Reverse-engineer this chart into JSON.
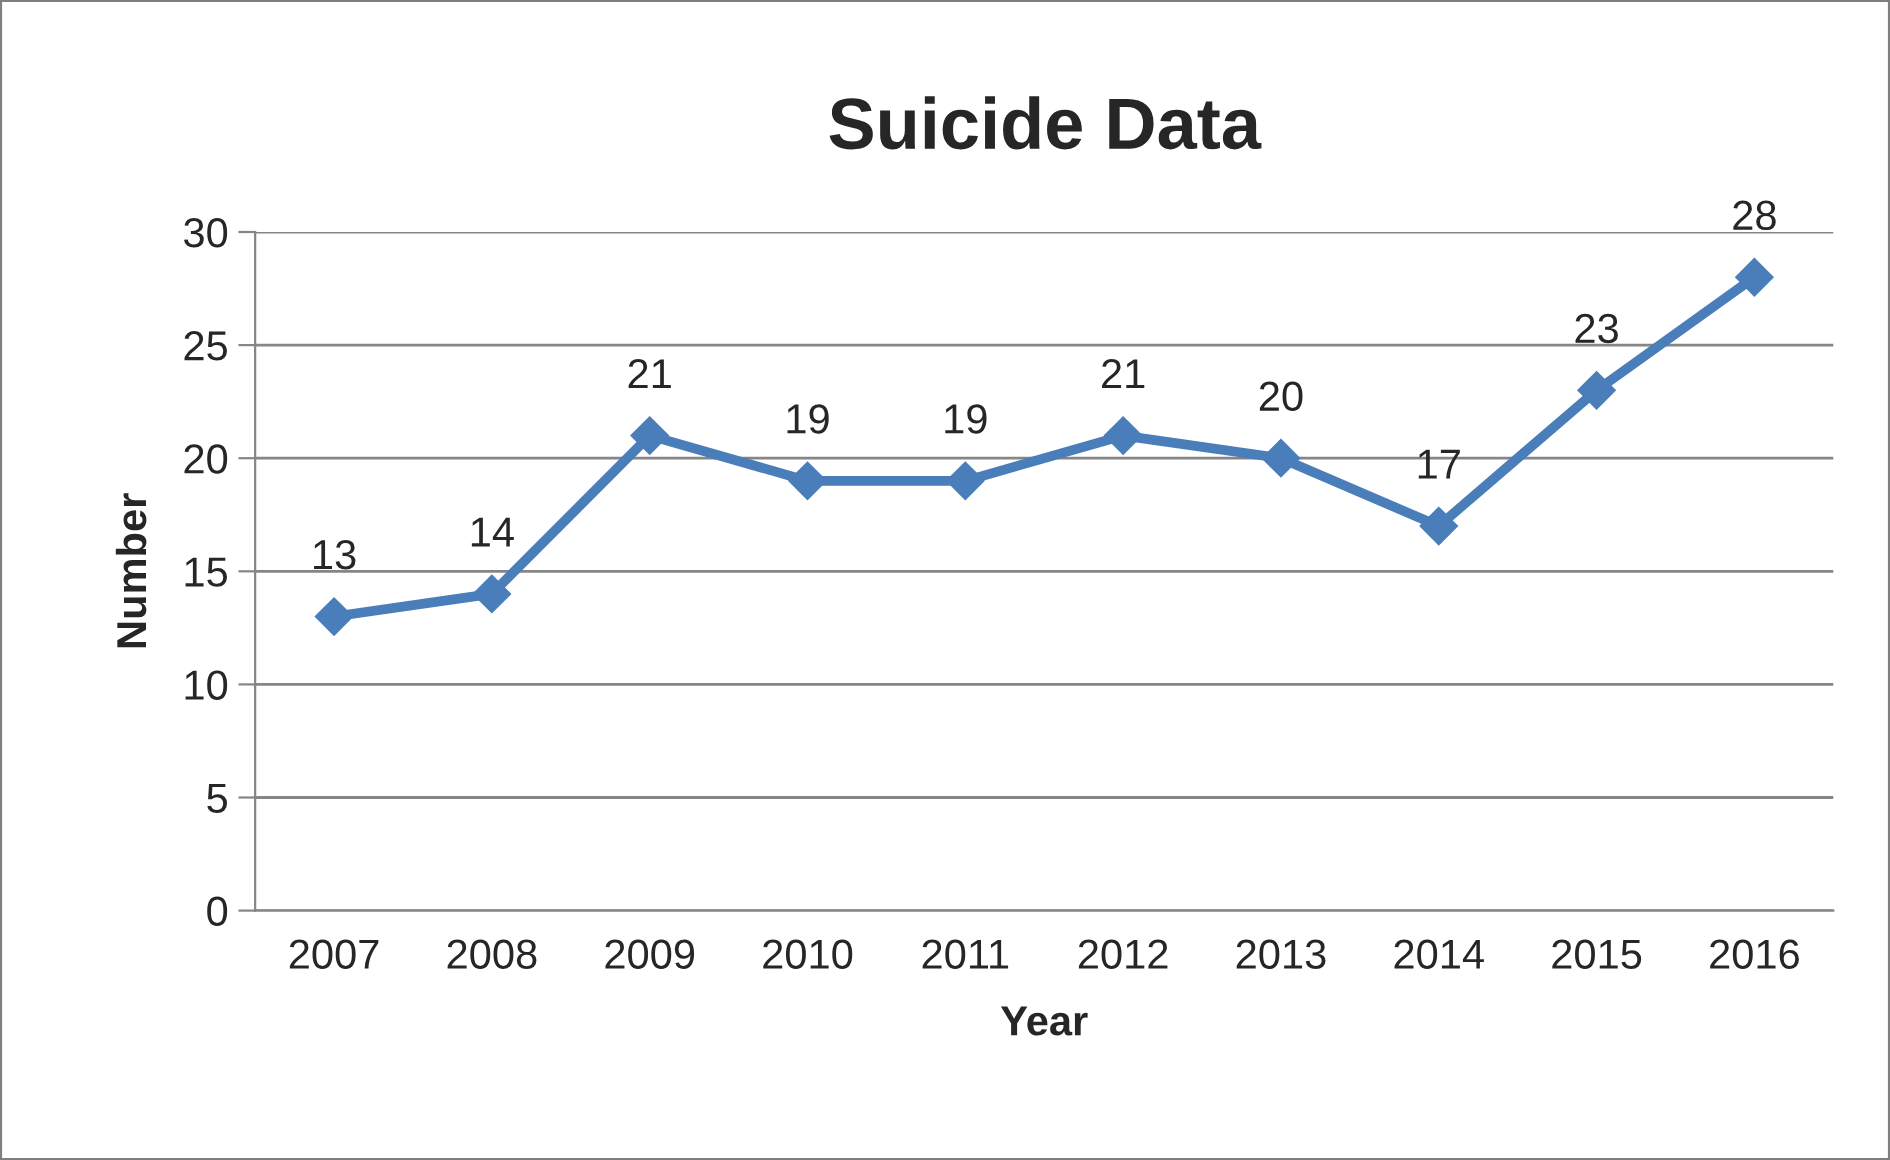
{
  "chart_data": {
    "type": "line",
    "title": "Suicide Data",
    "xlabel": "Year",
    "ylabel": "Number",
    "categories": [
      "2007",
      "2008",
      "2009",
      "2010",
      "2011",
      "2012",
      "2013",
      "2014",
      "2015",
      "2016"
    ],
    "series": [
      {
        "color": "#4a7ebb",
        "values": [
          13,
          14,
          21,
          19,
          19,
          21,
          20,
          17,
          23,
          28
        ]
      }
    ],
    "ylim": [
      0,
      30
    ],
    "yticks": [
      0,
      5,
      10,
      15,
      20,
      25,
      30
    ],
    "grid": "y",
    "legend": false,
    "marker": "diamond",
    "line_style": "solid",
    "data_labels": true
  }
}
